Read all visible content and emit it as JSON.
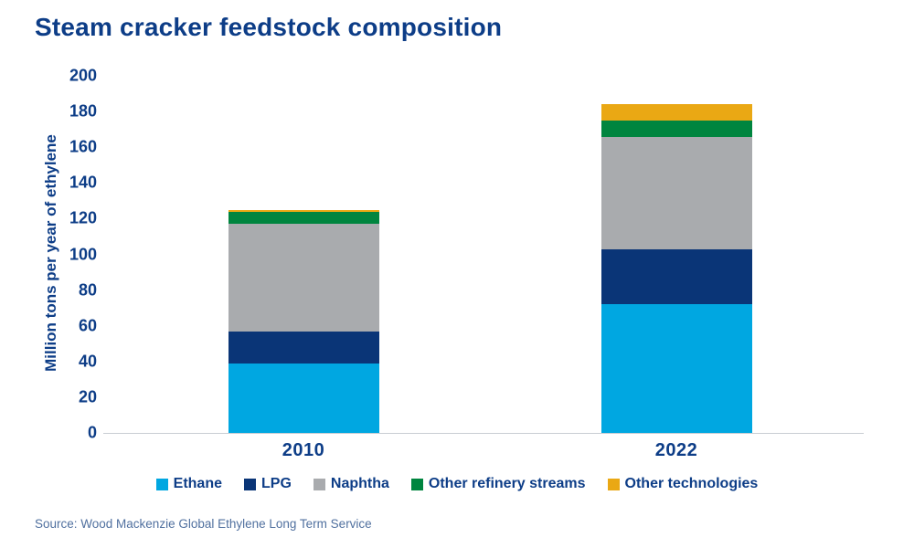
{
  "title": "Steam cracker feedstock composition",
  "source": "Source: Wood Mackenzie Global Ethylene Long Term Service",
  "colors": {
    "heading_text": "#0d3d87",
    "axis_line": "#c9cdd3",
    "source_text": "#50709f"
  },
  "chart_data": {
    "type": "bar",
    "stacked": true,
    "title": "Steam cracker feedstock composition",
    "categories": [
      "2010",
      "2022"
    ],
    "series": [
      {
        "name": "Ethane",
        "color": "#00a7e1",
        "values": [
          39,
          72
        ]
      },
      {
        "name": "LPG",
        "color": "#0a3577",
        "values": [
          18,
          31
        ]
      },
      {
        "name": "Naphtha",
        "color": "#a9abae",
        "values": [
          60,
          63
        ]
      },
      {
        "name": "Other refinery streams",
        "color": "#00853f",
        "values": [
          7,
          9
        ]
      },
      {
        "name": "Other technologies",
        "color": "#eaa814",
        "values": [
          1,
          9
        ]
      }
    ],
    "totals": [
      125,
      184
    ],
    "xlabel": "",
    "ylabel": "Million tons per year of ethylene",
    "ylim": [
      0,
      200
    ],
    "ytick_step": 20,
    "grid": false,
    "legend_position": "bottom"
  }
}
